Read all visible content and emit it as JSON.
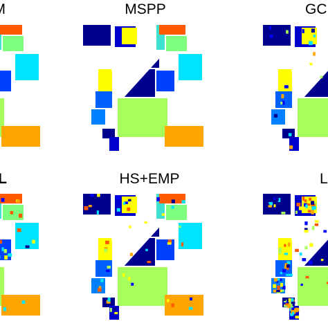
{
  "panels": [
    {
      "title": "M"
    },
    {
      "title": "MSPP"
    },
    {
      "title": "GC"
    },
    {
      "title": "L"
    },
    {
      "title": "HS+EMP"
    },
    {
      "title": "L"
    }
  ]
}
